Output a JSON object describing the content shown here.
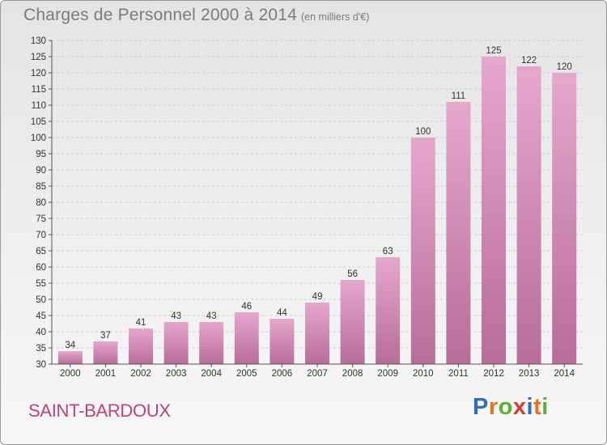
{
  "header": {
    "title": "Charges de Personnel 2000 à 2014",
    "subtitle": "(en milliers d'€)"
  },
  "footer": {
    "city": "SAINT-BARDOUX",
    "brand": "Proxiti",
    "brand_letters": [
      {
        "char": "P",
        "color": "#2f6fb8"
      },
      {
        "char": "r",
        "color": "#e8731d"
      },
      {
        "char": "o",
        "color": "#59b031"
      },
      {
        "char": "x",
        "color": "#d63b2a"
      },
      {
        "char": "i",
        "color": "#2f6fb8"
      },
      {
        "char": "t",
        "color": "#e8731d"
      },
      {
        "char": "i",
        "color": "#59b031"
      }
    ]
  },
  "colors": {
    "bar_light": "#e6a7cd",
    "bar_dark": "#b76d98",
    "grid": "#cfcfcf",
    "axis": "#555555"
  },
  "chart_data": {
    "type": "bar",
    "title": "Charges de Personnel 2000 à 2014",
    "subtitle": "(en milliers d'€)",
    "categories": [
      "2000",
      "2001",
      "2002",
      "2003",
      "2004",
      "2005",
      "2006",
      "2007",
      "2008",
      "2009",
      "2010",
      "2011",
      "2012",
      "2013",
      "2014"
    ],
    "values": [
      34,
      37,
      41,
      43,
      43,
      46,
      44,
      49,
      56,
      63,
      100,
      111,
      125,
      122,
      120
    ],
    "value_labels": [
      "34",
      "37",
      "41",
      "43",
      "43",
      "46",
      "44",
      "49",
      "56",
      "63",
      "100",
      "111",
      "125",
      "122",
      "120"
    ],
    "ylim": [
      30,
      130
    ],
    "yticks": [
      30,
      35,
      40,
      45,
      50,
      55,
      60,
      65,
      70,
      75,
      80,
      85,
      90,
      95,
      100,
      105,
      110,
      115,
      120,
      125,
      130
    ],
    "grid": true,
    "legend": "none"
  }
}
